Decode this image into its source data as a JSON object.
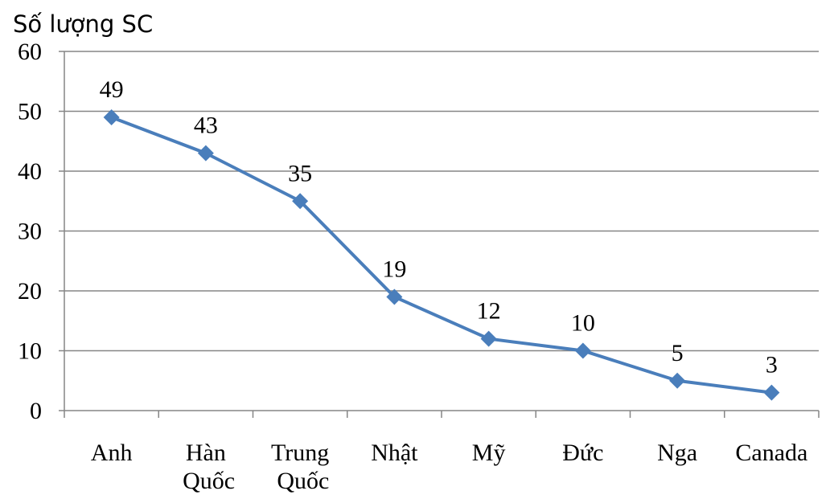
{
  "chart_data": {
    "type": "line",
    "y_label": "Số lượng SC",
    "categories": [
      "Anh",
      "Hàn Quốc",
      "Trung Quốc",
      "Nhật",
      "Mỹ",
      "Đức",
      "Nga",
      "Canada"
    ],
    "series": [
      {
        "color": "#4a7ebb",
        "values": [
          49,
          43,
          35,
          19,
          12,
          10,
          5,
          3
        ]
      }
    ],
    "ylim": [
      0,
      60
    ],
    "yticks": [
      0,
      10,
      20,
      30,
      40,
      50,
      60
    ],
    "grid": true,
    "data_labels": true
  }
}
